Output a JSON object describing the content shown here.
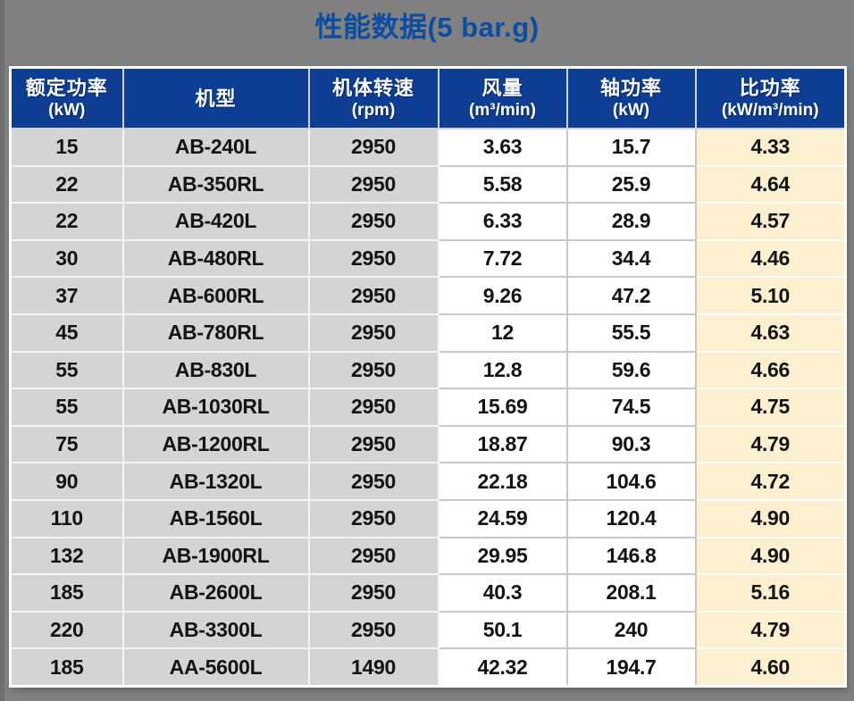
{
  "chart_data": {
    "type": "table",
    "title": "性能数据(5 bar.g)",
    "columns": [
      {
        "label": "额定功率",
        "unit": "(kW)"
      },
      {
        "label": "机型",
        "unit": ""
      },
      {
        "label": "机体转速",
        "unit": "(rpm)"
      },
      {
        "label": "风量",
        "unit": "(m³/min)"
      },
      {
        "label": "轴功率",
        "unit": "(kW)"
      },
      {
        "label": "比功率",
        "unit": "(kW/m³/min)"
      }
    ],
    "rows": [
      [
        "15",
        "AB-240L",
        "2950",
        "3.63",
        "15.7",
        "4.33"
      ],
      [
        "22",
        "AB-350RL",
        "2950",
        "5.58",
        "25.9",
        "4.64"
      ],
      [
        "22",
        "AB-420L",
        "2950",
        "6.33",
        "28.9",
        "4.57"
      ],
      [
        "30",
        "AB-480RL",
        "2950",
        "7.72",
        "34.4",
        "4.46"
      ],
      [
        "37",
        "AB-600RL",
        "2950",
        "9.26",
        "47.2",
        "5.10"
      ],
      [
        "45",
        "AB-780RL",
        "2950",
        "12",
        "55.5",
        "4.63"
      ],
      [
        "55",
        "AB-830L",
        "2950",
        "12.8",
        "59.6",
        "4.66"
      ],
      [
        "55",
        "AB-1030RL",
        "2950",
        "15.69",
        "74.5",
        "4.75"
      ],
      [
        "75",
        "AB-1200RL",
        "2950",
        "18.87",
        "90.3",
        "4.79"
      ],
      [
        "90",
        "AB-1320L",
        "2950",
        "22.18",
        "104.6",
        "4.72"
      ],
      [
        "110",
        "AB-1560L",
        "2950",
        "24.59",
        "120.4",
        "4.90"
      ],
      [
        "132",
        "AB-1900RL",
        "2950",
        "29.95",
        "146.8",
        "4.90"
      ],
      [
        "185",
        "AB-2600L",
        "2950",
        "40.3",
        "208.1",
        "5.16"
      ],
      [
        "220",
        "AB-3300L",
        "2950",
        "50.1",
        "240",
        "4.79"
      ],
      [
        "185",
        "AA-5600L",
        "1490",
        "42.32",
        "194.7",
        "4.60"
      ]
    ]
  },
  "colors": {
    "page_background": "#808080",
    "header_background": "#0e3d94",
    "title_text": "#0b4da2",
    "gray_column": "#d4d4d4",
    "white_column": "#ffffff",
    "highlight_column": "#fcf0d0"
  }
}
